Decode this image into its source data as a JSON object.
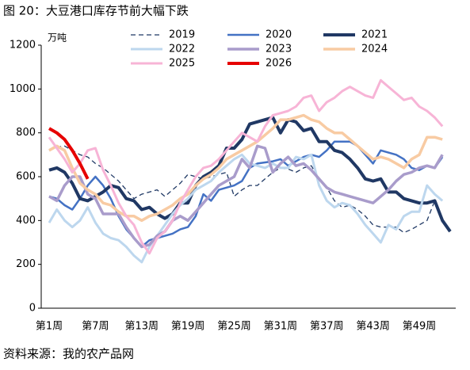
{
  "chart_data": {
    "type": "line",
    "title": "图 20：大豆港口库存节前大幅下跌",
    "y_label": "万吨",
    "source": "资料来源：我的农产品网",
    "categories": [
      "第1周",
      null,
      null,
      null,
      null,
      null,
      "第7周",
      null,
      null,
      null,
      null,
      null,
      "第13周",
      null,
      null,
      null,
      null,
      null,
      "第19周",
      null,
      null,
      null,
      null,
      null,
      "第25周",
      null,
      null,
      null,
      null,
      null,
      "第31周",
      null,
      null,
      null,
      null,
      null,
      "第37周",
      null,
      null,
      null,
      null,
      null,
      "第43周",
      null,
      null,
      null,
      null,
      null,
      "第49周",
      null,
      null,
      null,
      null
    ],
    "ylim": [
      0,
      1200
    ],
    "yticks": [
      0,
      200,
      400,
      600,
      800,
      1000,
      1200
    ],
    "grid": false,
    "legend": "top",
    "series": [
      {
        "name": "2019",
        "color": "#1f3864",
        "dash": true,
        "width": 1.3,
        "values": [
          720,
          735,
          740,
          720,
          700,
          690,
          660,
          640,
          610,
          580,
          540,
          500,
          520,
          530,
          540,
          510,
          540,
          570,
          610,
          600,
          590,
          600,
          610,
          620,
          510,
          540,
          560,
          560,
          590,
          620,
          640,
          635,
          620,
          640,
          650,
          590,
          550,
          490,
          460,
          470,
          450,
          420,
          380,
          370,
          370,
          370,
          345,
          360,
          380,
          400,
          490,
          null,
          null
        ]
      },
      {
        "name": "2020",
        "color": "#4472c4",
        "dash": false,
        "width": 2.5,
        "values": [
          510,
          500,
          470,
          450,
          500,
          560,
          600,
          560,
          500,
          420,
          360,
          320,
          280,
          310,
          320,
          330,
          340,
          360,
          370,
          420,
          520,
          490,
          540,
          550,
          560,
          580,
          640,
          660,
          665,
          670,
          680,
          650,
          670,
          690,
          700,
          690,
          720,
          760,
          760,
          760,
          740,
          700,
          660,
          720,
          710,
          700,
          680,
          640,
          630,
          650,
          640,
          690,
          null
        ]
      },
      {
        "name": "2021",
        "color": "#203864",
        "dash": false,
        "width": 4,
        "values": [
          630,
          640,
          620,
          570,
          500,
          490,
          510,
          530,
          560,
          550,
          500,
          490,
          450,
          460,
          430,
          410,
          430,
          480,
          480,
          560,
          600,
          620,
          650,
          730,
          730,
          770,
          840,
          850,
          860,
          870,
          800,
          860,
          850,
          810,
          820,
          760,
          760,
          720,
          710,
          680,
          640,
          590,
          580,
          590,
          530,
          530,
          500,
          490,
          480,
          480,
          490,
          400,
          350
        ]
      },
      {
        "name": "2022",
        "color": "#bdd7ee",
        "dash": false,
        "width": 3,
        "values": [
          390,
          450,
          400,
          370,
          400,
          460,
          390,
          340,
          320,
          310,
          280,
          240,
          210,
          280,
          330,
          380,
          430,
          470,
          500,
          540,
          560,
          580,
          620,
          650,
          680,
          700,
          660,
          650,
          640,
          660,
          640,
          640,
          690,
          680,
          700,
          560,
          490,
          460,
          480,
          470,
          430,
          380,
          340,
          300,
          380,
          360,
          420,
          440,
          440,
          560,
          520,
          490,
          null
        ]
      },
      {
        "name": "2023",
        "color": "#a99ccb",
        "dash": false,
        "width": 3.5,
        "values": [
          510,
          490,
          560,
          600,
          600,
          520,
          500,
          430,
          430,
          430,
          370,
          320,
          280,
          290,
          330,
          350,
          400,
          420,
          400,
          440,
          480,
          520,
          560,
          580,
          600,
          680,
          640,
          740,
          730,
          620,
          660,
          690,
          650,
          660,
          630,
          590,
          550,
          530,
          520,
          510,
          500,
          490,
          480,
          510,
          540,
          580,
          610,
          620,
          640,
          650,
          640,
          700,
          null
        ]
      },
      {
        "name": "2024",
        "color": "#f8cba3",
        "dash": false,
        "width": 3.5,
        "values": [
          720,
          740,
          720,
          640,
          570,
          540,
          520,
          480,
          470,
          440,
          420,
          420,
          400,
          420,
          430,
          450,
          470,
          500,
          520,
          560,
          590,
          610,
          640,
          680,
          700,
          720,
          740,
          760,
          790,
          820,
          860,
          860,
          870,
          880,
          860,
          850,
          820,
          800,
          800,
          770,
          740,
          710,
          680,
          690,
          680,
          660,
          640,
          680,
          700,
          780,
          780,
          770,
          null
        ]
      },
      {
        "name": "2025",
        "color": "#f7b4d6",
        "dash": false,
        "width": 3,
        "values": [
          780,
          730,
          680,
          620,
          660,
          720,
          730,
          630,
          560,
          480,
          420,
          380,
          300,
          250,
          320,
          350,
          400,
          480,
          540,
          600,
          640,
          650,
          680,
          720,
          760,
          800,
          780,
          760,
          830,
          880,
          890,
          900,
          920,
          960,
          970,
          900,
          940,
          960,
          990,
          1010,
          990,
          970,
          960,
          1040,
          1010,
          980,
          950,
          960,
          920,
          900,
          870,
          830,
          null
        ]
      },
      {
        "name": "2026",
        "color": "#e60000",
        "dash": false,
        "width": 4,
        "values": [
          820,
          800,
          770,
          720,
          660,
          590,
          null,
          null,
          null,
          null,
          null,
          null,
          null,
          null,
          null,
          null,
          null,
          null,
          null,
          null,
          null,
          null,
          null,
          null,
          null,
          null,
          null,
          null,
          null,
          null,
          null,
          null,
          null,
          null,
          null,
          null,
          null,
          null,
          null,
          null,
          null,
          null,
          null,
          null,
          null,
          null,
          null,
          null,
          null,
          null,
          null,
          null,
          null
        ]
      }
    ]
  }
}
